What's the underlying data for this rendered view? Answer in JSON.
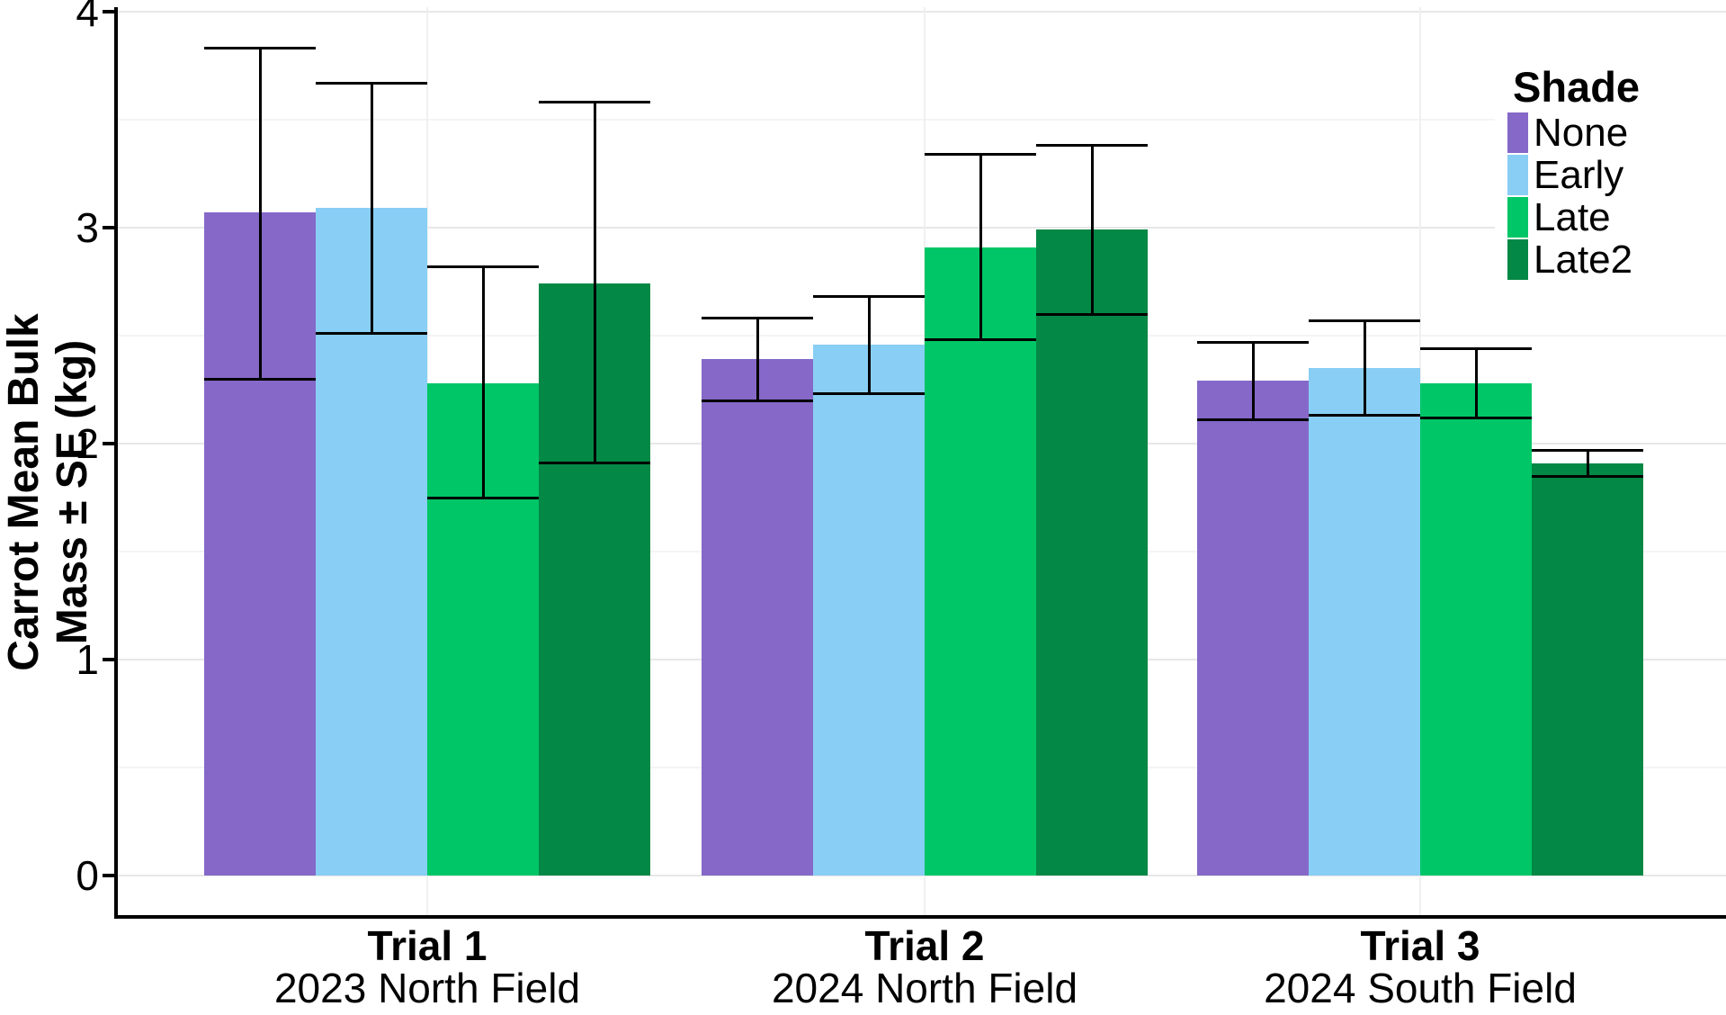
{
  "chart_data": {
    "type": "bar",
    "ylabel_line1": "Carrot Mean Bulk",
    "ylabel_line2": "Mass ± SE (kg)",
    "ylim": [
      0,
      4
    ],
    "yticks": [
      0,
      1,
      2,
      3,
      4
    ],
    "grid": {
      "major": [
        0,
        1,
        2,
        3,
        4
      ],
      "minor": [
        0.5,
        1.5,
        2.5,
        3.5
      ],
      "vertical_at_group_centers": true
    },
    "legend_position": "top-right-inside",
    "legend_title": "Shade",
    "categories": [
      {
        "label": "Trial 1",
        "sublabel": "2023 North Field"
      },
      {
        "label": "Trial 2",
        "sublabel": "2024 North Field"
      },
      {
        "label": "Trial 3",
        "sublabel": "2024 South Field"
      }
    ],
    "series": [
      {
        "name": "None",
        "color": "#8568C8",
        "values": [
          3.07,
          2.39,
          2.29
        ],
        "se_low": [
          2.3,
          2.2,
          2.11
        ],
        "se_high": [
          3.83,
          2.58,
          2.47
        ]
      },
      {
        "name": "Early",
        "color": "#89CEF4",
        "values": [
          3.09,
          2.46,
          2.35
        ],
        "se_low": [
          2.51,
          2.23,
          2.13
        ],
        "se_high": [
          3.67,
          2.68,
          2.57
        ]
      },
      {
        "name": "Late",
        "color": "#00C667",
        "values": [
          2.28,
          2.91,
          2.28
        ],
        "se_low": [
          1.75,
          2.48,
          2.12
        ],
        "se_high": [
          2.82,
          3.34,
          2.44
        ]
      },
      {
        "name": "Late2",
        "color": "#048845",
        "values": [
          2.74,
          2.99,
          1.91
        ],
        "se_low": [
          1.91,
          2.6,
          1.85
        ],
        "se_high": [
          3.58,
          3.38,
          1.97
        ]
      }
    ],
    "error_bar_color": "#000000",
    "axis_color": "#000000",
    "text_color": "#000000"
  }
}
